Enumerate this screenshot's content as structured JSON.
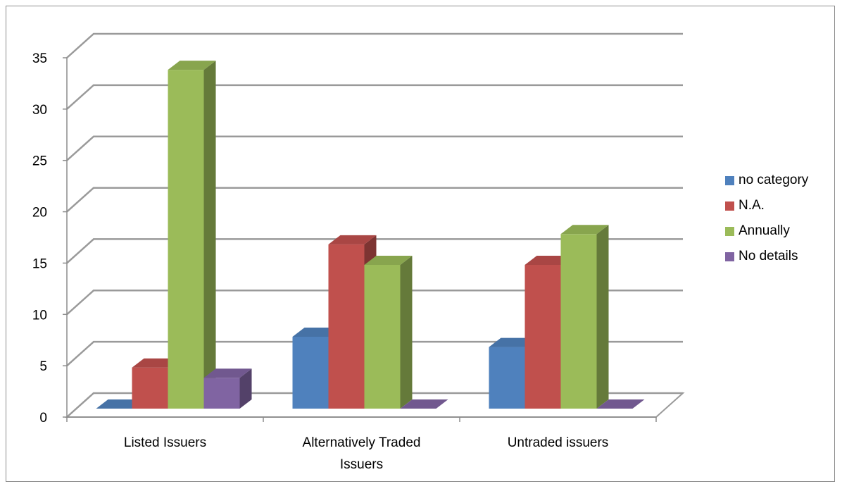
{
  "chart_data": {
    "type": "bar",
    "categories": [
      "Listed Issuers",
      "Alternatively Traded Issuers",
      "Untraded issuers"
    ],
    "series": [
      {
        "name": "no category",
        "values": [
          0,
          7,
          6
        ],
        "color": "#4F81BD"
      },
      {
        "name": "N.A.",
        "values": [
          4,
          16,
          14
        ],
        "color": "#C0504D"
      },
      {
        "name": "Annually",
        "values": [
          33,
          14,
          17
        ],
        "color": "#9BBB59"
      },
      {
        "name": "No details",
        "values": [
          3,
          0,
          0
        ],
        "color": "#8064A2"
      }
    ],
    "title": "",
    "xlabel": "",
    "ylabel": "",
    "ylim": [
      0,
      35
    ],
    "yticks": [
      0,
      5,
      10,
      15,
      20,
      25,
      30,
      35
    ],
    "grid": true,
    "legend": "right",
    "three_d": true
  }
}
